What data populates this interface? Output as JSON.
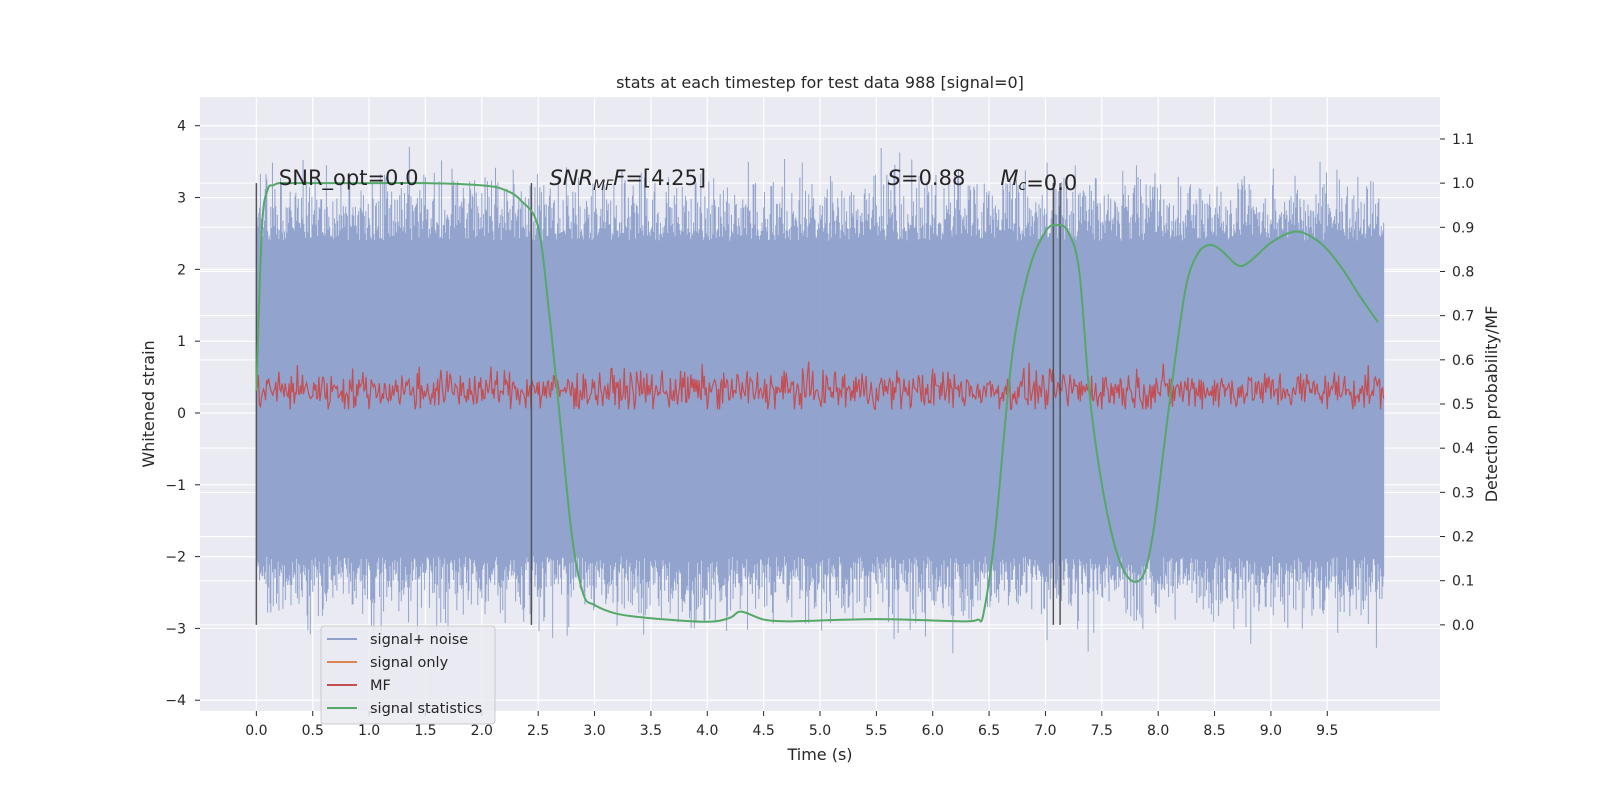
{
  "chart_data": {
    "type": "line",
    "title": "stats at each timestep for test data 988 [signal=0]",
    "xlabel": "Time (s)",
    "ylabel_left": "Whitened strain",
    "ylabel_right": "Detection probability/MF",
    "xlim": [
      -0.5,
      10.5
    ],
    "ylim_left": [
      -4.15,
      4.4
    ],
    "ylim_right": [
      -0.195,
      1.195
    ],
    "x_ticks": [
      "0.0",
      "0.5",
      "1.0",
      "1.5",
      "2.0",
      "2.5",
      "3.0",
      "3.5",
      "4.0",
      "4.5",
      "5.0",
      "5.5",
      "6.0",
      "6.5",
      "7.0",
      "7.5",
      "8.0",
      "8.5",
      "9.0",
      "9.5"
    ],
    "y_ticks_left": [
      "4",
      "3",
      "2",
      "1",
      "0",
      "−1",
      "−2",
      "−3",
      "−4"
    ],
    "y_ticks_right": [
      "1.1",
      "1.0",
      "0.9",
      "0.8",
      "0.7",
      "0.6",
      "0.5",
      "0.4",
      "0.3",
      "0.2",
      "0.1",
      "0.0"
    ],
    "grid": true,
    "legend_position": "lower-left",
    "legend": [
      "signal+ noise",
      "signal only",
      "MF",
      "signal statistics"
    ],
    "annotations": [
      {
        "pre": "SNR_opt=0.0",
        "x": 0.2
      },
      {
        "pre": "",
        "it": "SNR",
        "sub": "MF",
        "it2": "F",
        "post": "=[4.25]",
        "x": 2.6
      },
      {
        "pre": "",
        "it": "S",
        "sub": "",
        "it2": "",
        "post": "=0.88",
        "x": 5.6
      },
      {
        "pre": "",
        "it": "M",
        "sub": "c",
        "it2": "",
        "post": "=0.0",
        "x": 6.6
      }
    ],
    "vertical_lines_x": [
      0.0,
      2.44,
      7.07,
      7.13
    ],
    "signal_noise": {
      "t_start": 0.0,
      "t_end": 10.0,
      "band_min": -2.0,
      "band_max": 2.4,
      "peak_min": -3.7,
      "peak_max": 4.05
    },
    "mf": {
      "t_start": 0.0,
      "t_end": 10.0,
      "min": 0.05,
      "max": 0.95
    },
    "signal_statistics": {
      "x": [
        0.0,
        0.05,
        0.1,
        0.15,
        0.2,
        0.3,
        0.5,
        1.0,
        1.5,
        2.0,
        2.2,
        2.35,
        2.5,
        2.6,
        2.7,
        2.8,
        2.9,
        3.0,
        3.2,
        3.5,
        4.0,
        4.2,
        4.3,
        4.5,
        4.7,
        5.0,
        5.5,
        6.0,
        6.3,
        6.4,
        6.45,
        6.55,
        6.7,
        6.85,
        7.0,
        7.1,
        7.2,
        7.3,
        7.4,
        7.55,
        7.7,
        7.85,
        7.95,
        8.05,
        8.15,
        8.25,
        8.35,
        8.45,
        8.55,
        8.7,
        8.8,
        9.0,
        9.2,
        9.35,
        9.5,
        9.65,
        9.8,
        9.95
      ],
      "y": [
        0.53,
        0.9,
        0.985,
        0.995,
        1.0,
        1.0,
        1.0,
        1.0,
        1.0,
        0.995,
        0.985,
        0.96,
        0.9,
        0.7,
        0.45,
        0.2,
        0.07,
        0.045,
        0.025,
        0.015,
        0.007,
        0.016,
        0.03,
        0.012,
        0.008,
        0.01,
        0.013,
        0.01,
        0.008,
        0.012,
        0.025,
        0.2,
        0.6,
        0.8,
        0.89,
        0.905,
        0.89,
        0.8,
        0.5,
        0.25,
        0.12,
        0.105,
        0.2,
        0.4,
        0.6,
        0.77,
        0.84,
        0.86,
        0.85,
        0.815,
        0.82,
        0.865,
        0.89,
        0.88,
        0.85,
        0.8,
        0.74,
        0.685
      ]
    }
  },
  "colors": {
    "background": "#eaeaf2",
    "grid": "#ffffff",
    "signal_noise": "#8da0cb",
    "signal_only": "#dd8452",
    "mf": "#c44e52",
    "signal_statistics": "#55a868",
    "vlines": "#555555",
    "text": "#262626"
  }
}
